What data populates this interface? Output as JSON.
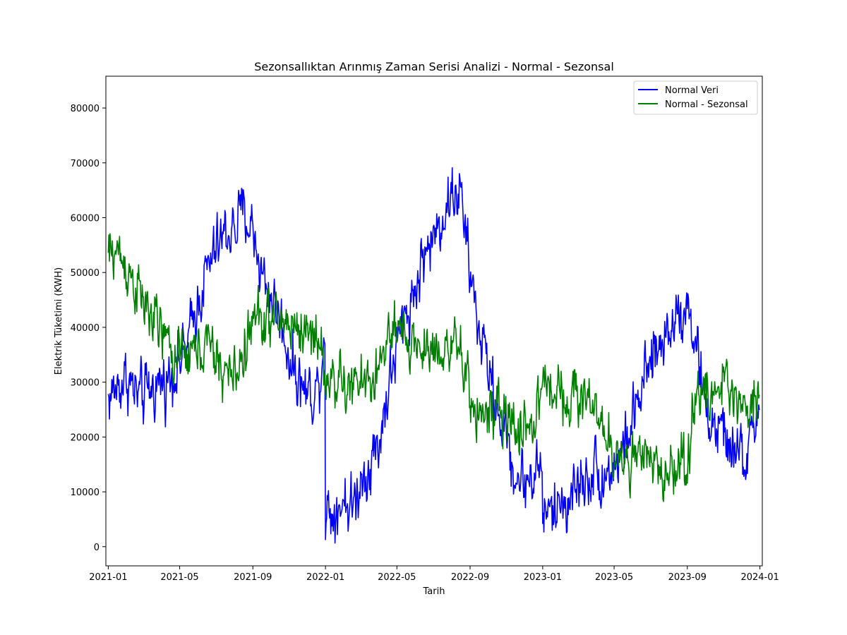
{
  "chart_data": {
    "type": "line",
    "title": "Sezonsallıktan Arınmış Zaman Serisi Analizi - Normal - Sezonsal",
    "xlabel": "Tarih",
    "ylabel": "Elektrik Tüketimi (KWH)",
    "x_range": [
      "2021-01-01",
      "2023-12-31"
    ],
    "xlim": [
      "2020-12-28",
      "2024-01-05"
    ],
    "ylim": [
      -3500,
      85800
    ],
    "x_ticks": [
      "2021-01",
      "2021-05",
      "2021-09",
      "2022-01",
      "2022-05",
      "2022-09",
      "2023-01",
      "2023-05",
      "2023-09",
      "2024-01"
    ],
    "y_ticks": [
      0,
      10000,
      20000,
      30000,
      40000,
      50000,
      60000,
      70000,
      80000
    ],
    "grid": false,
    "legend_position": "top-right",
    "series": [
      {
        "name": "Normal Veri",
        "color": "#0000ff",
        "noise": 4500,
        "points": [
          [
            "2021-01-01",
            27000
          ],
          [
            "2021-01-15",
            29000
          ],
          [
            "2021-02-01",
            31000
          ],
          [
            "2021-02-15",
            28000
          ],
          [
            "2021-03-01",
            27000
          ],
          [
            "2021-03-15",
            29000
          ],
          [
            "2021-04-01",
            30000
          ],
          [
            "2021-04-15",
            31000
          ],
          [
            "2021-05-01",
            34000
          ],
          [
            "2021-05-15",
            37000
          ],
          [
            "2021-06-01",
            45000
          ],
          [
            "2021-06-15",
            50000
          ],
          [
            "2021-07-01",
            54000
          ],
          [
            "2021-07-15",
            57000
          ],
          [
            "2021-08-01",
            58000
          ],
          [
            "2021-08-15",
            61000
          ],
          [
            "2021-09-01",
            58000
          ],
          [
            "2021-09-15",
            50000
          ],
          [
            "2021-10-01",
            46000
          ],
          [
            "2021-10-15",
            42000
          ],
          [
            "2021-11-01",
            35000
          ],
          [
            "2021-11-15",
            31000
          ],
          [
            "2021-12-01",
            28000
          ],
          [
            "2021-12-20",
            29000
          ],
          [
            "2021-12-31",
            40000
          ],
          [
            "2022-01-01",
            7000
          ],
          [
            "2022-01-15",
            6500
          ],
          [
            "2022-02-01",
            9000
          ],
          [
            "2022-02-15",
            7000
          ],
          [
            "2022-03-01",
            12000
          ],
          [
            "2022-03-15",
            15000
          ],
          [
            "2022-04-01",
            19000
          ],
          [
            "2022-04-15",
            28000
          ],
          [
            "2022-05-01",
            36000
          ],
          [
            "2022-05-15",
            42000
          ],
          [
            "2022-06-01",
            47000
          ],
          [
            "2022-06-15",
            53000
          ],
          [
            "2022-07-01",
            56000
          ],
          [
            "2022-07-15",
            60000
          ],
          [
            "2022-08-01",
            64000
          ],
          [
            "2022-08-15",
            65000
          ],
          [
            "2022-09-01",
            50000
          ],
          [
            "2022-09-15",
            40000
          ],
          [
            "2022-10-01",
            33000
          ],
          [
            "2022-10-15",
            26000
          ],
          [
            "2022-11-01",
            20000
          ],
          [
            "2022-11-15",
            13000
          ],
          [
            "2022-12-01",
            12000
          ],
          [
            "2022-12-15",
            13000
          ],
          [
            "2022-12-31",
            15000
          ],
          [
            "2023-01-01",
            6000
          ],
          [
            "2023-01-15",
            6000
          ],
          [
            "2023-02-01",
            8000
          ],
          [
            "2023-02-15",
            9000
          ],
          [
            "2023-03-01",
            11000
          ],
          [
            "2023-03-15",
            13000
          ],
          [
            "2023-04-01",
            14000
          ],
          [
            "2023-04-15",
            13000
          ],
          [
            "2023-05-01",
            15000
          ],
          [
            "2023-05-15",
            17000
          ],
          [
            "2023-06-01",
            23000
          ],
          [
            "2023-06-15",
            28000
          ],
          [
            "2023-07-01",
            33000
          ],
          [
            "2023-07-15",
            36000
          ],
          [
            "2023-08-01",
            40000
          ],
          [
            "2023-08-15",
            43000
          ],
          [
            "2023-09-01",
            44000
          ],
          [
            "2023-09-15",
            38000
          ],
          [
            "2023-10-01",
            25000
          ],
          [
            "2023-10-15",
            22000
          ],
          [
            "2023-11-01",
            20000
          ],
          [
            "2023-11-15",
            18000
          ],
          [
            "2023-12-01",
            16000
          ],
          [
            "2023-12-15",
            17000
          ],
          [
            "2023-12-31",
            27500
          ]
        ]
      },
      {
        "name": "Normal - Sezonsal",
        "color": "#008000",
        "noise": 4200,
        "points": [
          [
            "2021-01-01",
            53000
          ],
          [
            "2021-01-15",
            54000
          ],
          [
            "2021-02-01",
            51000
          ],
          [
            "2021-02-15",
            48000
          ],
          [
            "2021-03-01",
            44000
          ],
          [
            "2021-03-15",
            42000
          ],
          [
            "2021-04-01",
            39000
          ],
          [
            "2021-04-15",
            36000
          ],
          [
            "2021-05-01",
            34000
          ],
          [
            "2021-05-15",
            35000
          ],
          [
            "2021-06-01",
            36000
          ],
          [
            "2021-06-15",
            37000
          ],
          [
            "2021-07-01",
            34000
          ],
          [
            "2021-07-15",
            32000
          ],
          [
            "2021-08-01",
            31000
          ],
          [
            "2021-08-15",
            35000
          ],
          [
            "2021-09-01",
            41000
          ],
          [
            "2021-09-15",
            42000
          ],
          [
            "2021-10-01",
            41000
          ],
          [
            "2021-10-15",
            41000
          ],
          [
            "2021-11-01",
            41000
          ],
          [
            "2021-11-15",
            40000
          ],
          [
            "2021-12-01",
            39000
          ],
          [
            "2021-12-20",
            39000
          ],
          [
            "2022-01-01",
            30000
          ],
          [
            "2022-01-15",
            31000
          ],
          [
            "2022-02-01",
            29000
          ],
          [
            "2022-02-15",
            29000
          ],
          [
            "2022-03-01",
            30000
          ],
          [
            "2022-03-15",
            30000
          ],
          [
            "2022-04-01",
            32000
          ],
          [
            "2022-04-15",
            38000
          ],
          [
            "2022-05-01",
            38000
          ],
          [
            "2022-05-15",
            38000
          ],
          [
            "2022-06-01",
            37000
          ],
          [
            "2022-06-15",
            36000
          ],
          [
            "2022-07-01",
            36000
          ],
          [
            "2022-07-15",
            37000
          ],
          [
            "2022-08-01",
            36000
          ],
          [
            "2022-08-15",
            35000
          ],
          [
            "2022-09-01",
            27000
          ],
          [
            "2022-09-15",
            25000
          ],
          [
            "2022-10-01",
            24000
          ],
          [
            "2022-10-15",
            24000
          ],
          [
            "2022-11-01",
            23000
          ],
          [
            "2022-11-15",
            22000
          ],
          [
            "2022-12-01",
            22000
          ],
          [
            "2022-12-15",
            22000
          ],
          [
            "2023-01-01",
            29000
          ],
          [
            "2023-01-15",
            30000
          ],
          [
            "2023-02-01",
            28000
          ],
          [
            "2023-02-15",
            28000
          ],
          [
            "2023-03-01",
            27000
          ],
          [
            "2023-03-15",
            27000
          ],
          [
            "2023-04-01",
            27000
          ],
          [
            "2023-04-15",
            18000
          ],
          [
            "2023-05-01",
            17000
          ],
          [
            "2023-05-15",
            17000
          ],
          [
            "2023-06-01",
            16000
          ],
          [
            "2023-06-15",
            15000
          ],
          [
            "2023-07-01",
            15000
          ],
          [
            "2023-07-15",
            14000
          ],
          [
            "2023-08-01",
            14000
          ],
          [
            "2023-08-15",
            15000
          ],
          [
            "2023-09-01",
            15000
          ],
          [
            "2023-09-15",
            30000
          ],
          [
            "2023-10-01",
            26000
          ],
          [
            "2023-10-15",
            28000
          ],
          [
            "2023-11-01",
            30000
          ],
          [
            "2023-11-15",
            28000
          ],
          [
            "2023-12-01",
            27000
          ],
          [
            "2023-12-15",
            25000
          ],
          [
            "2023-12-31",
            30000
          ]
        ]
      }
    ]
  }
}
